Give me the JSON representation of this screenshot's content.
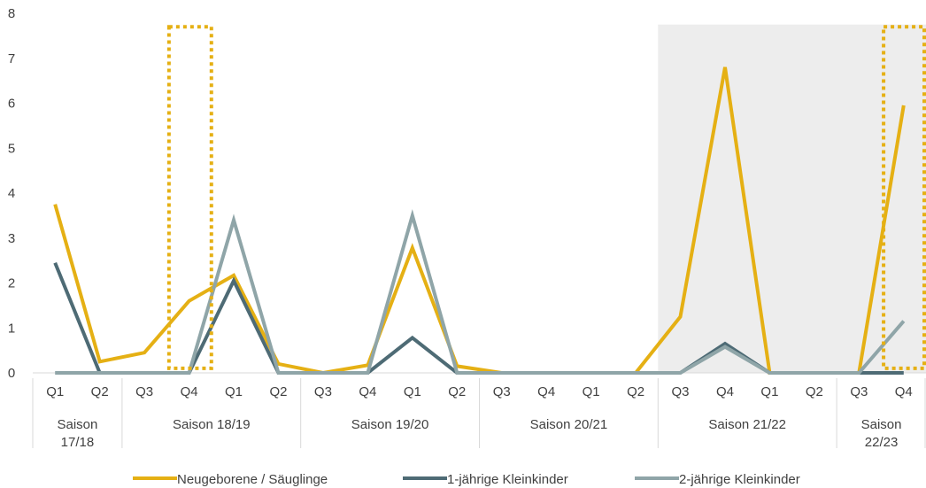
{
  "chart_data": {
    "type": "line",
    "title": "",
    "xlabel": "",
    "ylabel": "",
    "ylim": [
      0,
      8
    ],
    "yticks": [
      "0",
      "1",
      "2",
      "3",
      "4",
      "5",
      "6",
      "7",
      "8"
    ],
    "grid": false,
    "legend_position": "bottom",
    "quarters": [
      "Q1",
      "Q2",
      "Q3",
      "Q4",
      "Q1",
      "Q2",
      "Q3",
      "Q4",
      "Q1",
      "Q2",
      "Q3",
      "Q4",
      "Q1",
      "Q2",
      "Q3",
      "Q4",
      "Q1",
      "Q2",
      "Q3",
      "Q4"
    ],
    "seasons": [
      {
        "label": "Saison 17/18",
        "lines": [
          "Saison",
          "17/18"
        ],
        "start": 0,
        "end": 1
      },
      {
        "label": "Saison 18/19",
        "lines": [
          "Saison 18/19"
        ],
        "start": 2,
        "end": 5
      },
      {
        "label": "Saison 19/20",
        "lines": [
          "Saison 19/20"
        ],
        "start": 6,
        "end": 9
      },
      {
        "label": "Saison 20/21",
        "lines": [
          "Saison 20/21"
        ],
        "start": 10,
        "end": 13
      },
      {
        "label": "Saison 21/22",
        "lines": [
          "Saison 21/22"
        ],
        "start": 14,
        "end": 17
      },
      {
        "label": "Saison 22/23",
        "lines": [
          "Saison",
          "22/23"
        ],
        "start": 18,
        "end": 19
      }
    ],
    "shaded_region": {
      "from_index": 14,
      "to_index": 19,
      "color": "#ededed"
    },
    "highlight_boxes": [
      {
        "from_index": 2.5,
        "to_index": 3.5,
        "y_top": 7.7,
        "color": "#e5b014"
      },
      {
        "from_index": 18.5,
        "to_index": 19.5,
        "y_top": 7.7,
        "color": "#e5b014"
      }
    ],
    "series": [
      {
        "name": "Neugeborene / Säuglinge",
        "color": "#e5b014",
        "values": [
          3.75,
          0.25,
          0.45,
          1.6,
          2.17,
          0.2,
          0.0,
          0.17,
          2.78,
          0.15,
          0.0,
          0.0,
          0.0,
          0.0,
          1.25,
          6.8,
          0.0,
          0.0,
          0.0,
          5.95
        ]
      },
      {
        "name": "1-jährige Kleinkinder",
        "color": "#4e6b75",
        "values": [
          2.45,
          0.0,
          0.0,
          0.0,
          2.05,
          0.0,
          0.0,
          0.0,
          0.78,
          0.0,
          0.0,
          0.0,
          0.0,
          0.0,
          0.0,
          0.65,
          0.0,
          0.0,
          0.0,
          0.0
        ]
      },
      {
        "name": "2-jährige Kleinkinder",
        "color": "#8fa5a8",
        "values": [
          0.0,
          0.0,
          0.0,
          0.0,
          3.4,
          0.0,
          0.0,
          0.0,
          3.5,
          0.0,
          0.0,
          0.0,
          0.0,
          0.0,
          0.0,
          0.58,
          0.0,
          0.0,
          0.0,
          1.15
        ]
      }
    ]
  }
}
